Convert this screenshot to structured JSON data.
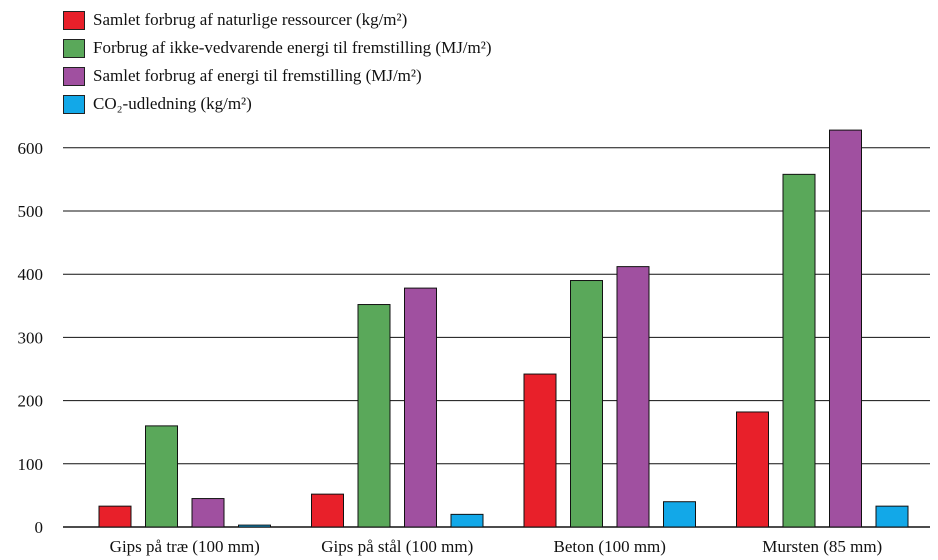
{
  "chart_data": {
    "type": "bar",
    "categories": [
      "Gips på træ (100 mm)",
      "Gips på stål (100 mm)",
      "Beton (100 mm)",
      "Mursten (85 mm)"
    ],
    "series": [
      {
        "name": "Samlet forbrug af naturlige ressourcer (kg/m²)",
        "color": "#e8202a",
        "values": [
          33,
          52,
          242,
          182
        ]
      },
      {
        "name": "Forbrug af ikke-vedvarende energi til fremstilling (MJ/m²)",
        "color": "#5aa85a",
        "values": [
          160,
          352,
          390,
          558
        ]
      },
      {
        "name": "Samlet forbrug af energi til fremstilling (MJ/m²)",
        "color": "#a050a0",
        "values": [
          45,
          378,
          412,
          628
        ]
      },
      {
        "name": "CO₂-udledning (kg/m²)",
        "color": "#12a8e8",
        "values": [
          3,
          20,
          40,
          33
        ]
      }
    ],
    "ylim": [
      0,
      650
    ],
    "yticks": [
      0,
      100,
      200,
      300,
      400,
      500,
      600
    ],
    "grid": true,
    "legend_position": "top-left"
  }
}
